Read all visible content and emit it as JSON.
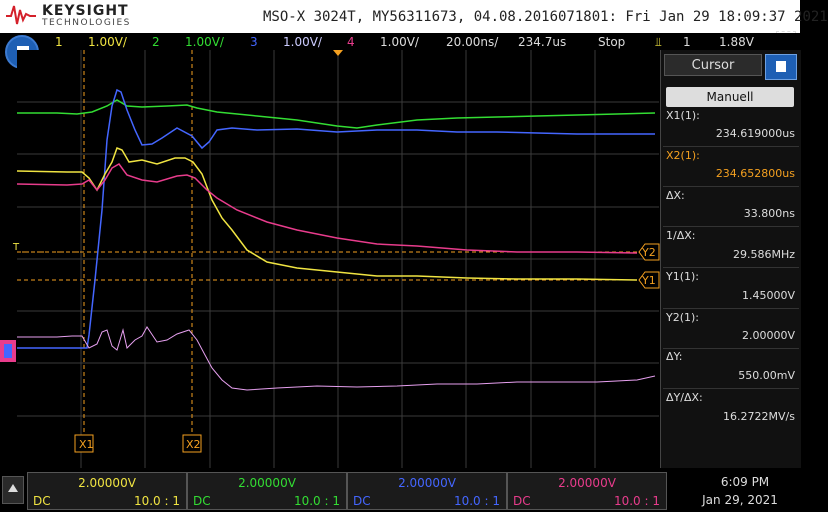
{
  "header": {
    "brand": "KEYSIGHT",
    "brand_sub": "TECHNOLOGIES",
    "model_line": "MSO-X 3024T, MY56311673, 04.08.2016071801: Fri Jan 29 18:09:37 2021"
  },
  "topbar": {
    "ch1_num": "1",
    "ch1_scale": "1.00V/",
    "ch2_num": "2",
    "ch2_scale": "1.00V/",
    "ch3_num": "3",
    "ch3_scale": "1.00V/",
    "ch4_num": "4",
    "ch4_scale": "1.00V/",
    "timebase": "20.00ns/",
    "delay": "234.7us",
    "run_state": "Stop",
    "trig_source": "1",
    "trig_level": "1.88V"
  },
  "colors": {
    "ch1": "#f0e442",
    "ch2": "#33dd33",
    "ch3": "#4466ff",
    "ch4": "#e83c8c",
    "digital": "#e7a0f0",
    "cursor": "#f4a020"
  },
  "markers": {
    "x1": "X1",
    "x2": "X2",
    "y1": "Y1",
    "y2": "Y2",
    "trig": "T"
  },
  "cursor_panel": {
    "tab": "Cursor",
    "mode": "Manuell",
    "x1_label": "X1(1):",
    "x1_value": "234.619000us",
    "x2_label": "X2(1):",
    "x2_value": "234.652800us",
    "dx_label": "ΔX:",
    "dx_value": "33.800ns",
    "inv_dx_label": "1/ΔX:",
    "inv_dx_value": "29.586MHz",
    "y1_label": "Y1(1):",
    "y1_value": "1.45000V",
    "y2_label": "Y2(1):",
    "y2_value": "2.00000V",
    "dy_label": "ΔY:",
    "dy_value": "550.00mV",
    "dydx_label": "ΔY/ΔX:",
    "dydx_value": "16.2722MV/s"
  },
  "bottom": {
    "channels": [
      {
        "volts": "2.00000V",
        "coupling": "DC",
        "probe": "10.0 : 1"
      },
      {
        "volts": "2.00000V",
        "coupling": "DC",
        "probe": "10.0 : 1"
      },
      {
        "volts": "2.00000V",
        "coupling": "DC",
        "probe": "10.0 : 1"
      },
      {
        "volts": "2.00000V",
        "coupling": "DC",
        "probe": "10.0 : 1"
      }
    ],
    "time": "6:09 PM",
    "date": "Jan 29, 2021"
  }
}
